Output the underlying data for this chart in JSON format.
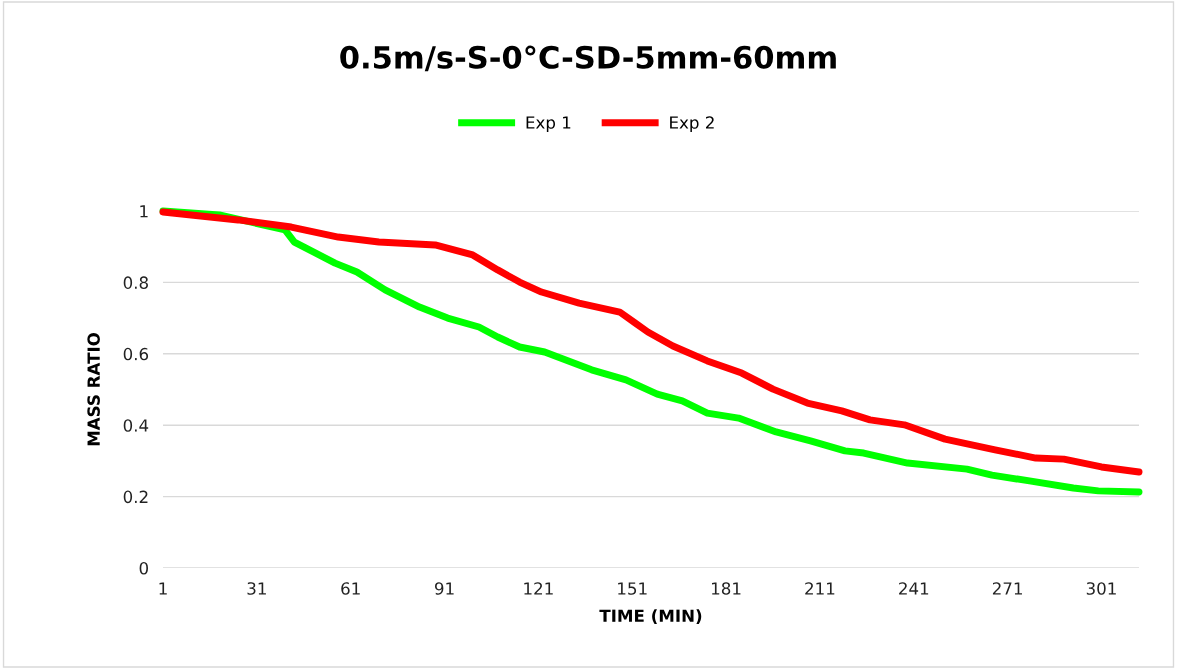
{
  "chart_data": {
    "type": "line",
    "title": "0.5m/s-S-0°C-SD-5mm-60mm",
    "xlabel": "TIME (MIN)",
    "ylabel": "MASS RATIO",
    "xlim": [
      1,
      313
    ],
    "xticks": [
      1,
      31,
      61,
      91,
      121,
      151,
      181,
      211,
      241,
      271,
      301
    ],
    "ylim": [
      0,
      1
    ],
    "yticks": [
      0,
      0.2,
      0.4,
      0.6,
      0.8,
      1
    ],
    "grid": "y",
    "legend": "top",
    "line_style": "solid",
    "marker": "none",
    "series": [
      {
        "name": "Exp 1",
        "color": "#00ff00",
        "x": [
          1,
          19,
          40,
          43,
          56,
          63,
          72,
          83,
          92,
          102,
          108,
          115,
          123,
          138,
          149,
          159,
          167,
          175,
          185,
          197,
          208,
          219,
          225,
          239,
          258,
          266,
          278,
          292,
          300,
          313
        ],
        "values": [
          1.0,
          0.989,
          0.947,
          0.913,
          0.854,
          0.829,
          0.779,
          0.731,
          0.7,
          0.675,
          0.647,
          0.619,
          0.605,
          0.555,
          0.527,
          0.487,
          0.468,
          0.434,
          0.42,
          0.381,
          0.356,
          0.328,
          0.322,
          0.294,
          0.277,
          0.26,
          0.244,
          0.224,
          0.216,
          0.213
        ]
      },
      {
        "name": "Exp 2",
        "color": "#ff0000",
        "x": [
          1,
          25,
          42,
          57,
          70,
          88,
          100,
          108,
          115,
          122,
          134,
          147,
          152,
          156,
          164,
          175,
          186,
          196,
          207,
          218,
          227,
          238,
          251,
          267,
          280,
          289,
          301,
          313
        ],
        "values": [
          0.997,
          0.975,
          0.955,
          0.927,
          0.913,
          0.905,
          0.877,
          0.835,
          0.801,
          0.773,
          0.742,
          0.717,
          0.686,
          0.661,
          0.622,
          0.58,
          0.546,
          0.501,
          0.462,
          0.44,
          0.415,
          0.401,
          0.361,
          0.331,
          0.308,
          0.305,
          0.283,
          0.269
        ]
      }
    ]
  }
}
